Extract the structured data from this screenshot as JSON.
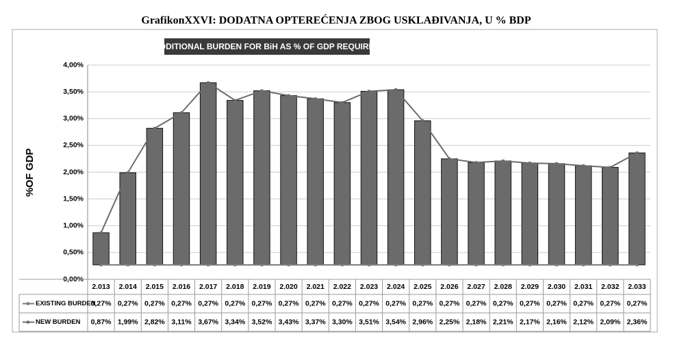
{
  "chart_data": {
    "type": "bar",
    "title": "GrafikonXXVI: DODATNA OPTEREĆENJA ZBOG USKLAĐIVANJA, U % BDP",
    "subtitle": "ADDITIONAL BURDEN FOR BiH AS % OF GDP REQUIRED",
    "y_label": "%OF GDP",
    "categories": [
      "2.013",
      "2.014",
      "2.015",
      "2.016",
      "2.017",
      "2.018",
      "2.019",
      "2.020",
      "2.021",
      "2.022",
      "2.023",
      "2.024",
      "2.025",
      "2.026",
      "2.027",
      "2.028",
      "2.029",
      "2.030",
      "2.031",
      "2.032",
      "2.033"
    ],
    "series": [
      {
        "name": "EXISTING BURDEN",
        "color": "#7a7a7a",
        "values": [
          0.27,
          0.27,
          0.27,
          0.27,
          0.27,
          0.27,
          0.27,
          0.27,
          0.27,
          0.27,
          0.27,
          0.27,
          0.27,
          0.27,
          0.27,
          0.27,
          0.27,
          0.27,
          0.27,
          0.27,
          0.27
        ],
        "value_labels": [
          "0,27%",
          "0,27%",
          "0,27%",
          "0,27%",
          "0,27%",
          "0,27%",
          "0,27%",
          "0,27%",
          "0,27%",
          "0,27%",
          "0,27%",
          "0,27%",
          "0,27%",
          "0,27%",
          "0,27%",
          "0,27%",
          "0,27%",
          "0,27%",
          "0,27%",
          "0,27%",
          "0,27%"
        ]
      },
      {
        "name": "NEW BURDEN",
        "color": "#6b6b6b",
        "values": [
          0.87,
          1.99,
          2.82,
          3.11,
          3.67,
          3.34,
          3.52,
          3.43,
          3.37,
          3.3,
          3.51,
          3.54,
          2.96,
          2.25,
          2.18,
          2.21,
          2.17,
          2.16,
          2.12,
          2.09,
          2.36
        ],
        "value_labels": [
          "0,87%",
          "1,99%",
          "2,82%",
          "3,11%",
          "3,67%",
          "3,34%",
          "3,52%",
          "3,43%",
          "3,37%",
          "3,30%",
          "3,51%",
          "3,54%",
          "2,96%",
          "2,25%",
          "2,18%",
          "2,21%",
          "2,17%",
          "2,16%",
          "2,12%",
          "2,09%",
          "2,36%"
        ]
      }
    ],
    "ylim": [
      0,
      4
    ],
    "yticks": [
      {
        "value": 0,
        "label": "0,00%"
      },
      {
        "value": 0.5,
        "label": "0,50%"
      },
      {
        "value": 1,
        "label": "1,00%"
      },
      {
        "value": 1.5,
        "label": "1,50%"
      },
      {
        "value": 2,
        "label": "2,00%"
      },
      {
        "value": 2.5,
        "label": "2,50%"
      },
      {
        "value": 3,
        "label": "3,00%"
      },
      {
        "value": 3.5,
        "label": "3,50%"
      },
      {
        "value": 4,
        "label": "4,00%"
      }
    ],
    "grid": true
  }
}
